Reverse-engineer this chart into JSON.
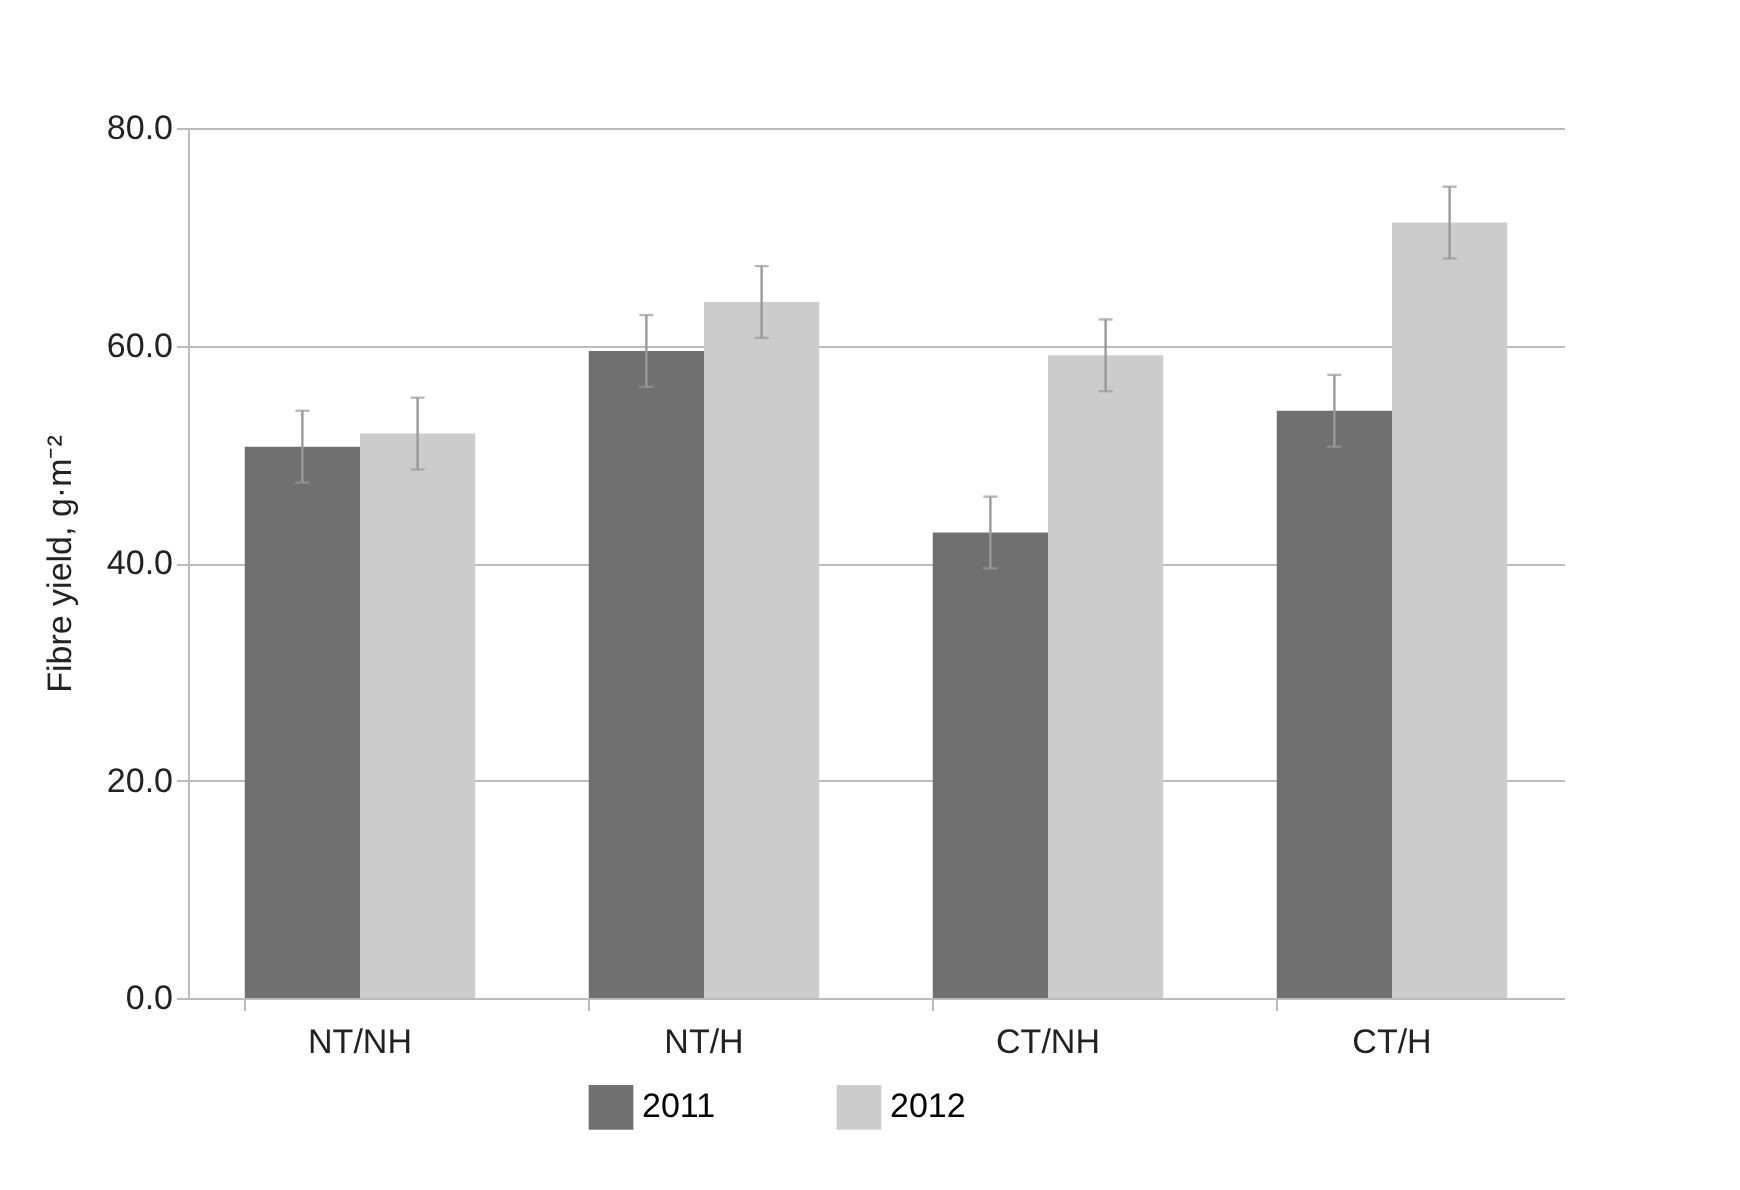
{
  "chart_data": {
    "type": "bar",
    "ylabel": "Fibre yield, g·m⁻²",
    "categories": [
      "NT/NH",
      "NT/H",
      "CT/NH",
      "CT/H"
    ],
    "series": [
      {
        "name": "2011",
        "color": "#707070",
        "values": [
          50.7,
          59.5,
          42.8,
          54.0
        ],
        "errors": [
          3.3,
          3.3,
          3.3,
          3.3
        ]
      },
      {
        "name": "2012",
        "color": "#cccccc",
        "values": [
          51.9,
          64.0,
          59.1,
          71.3
        ],
        "errors": [
          3.3,
          3.3,
          3.3,
          3.3
        ]
      }
    ],
    "ylim": [
      0,
      80
    ],
    "yticks": [
      {
        "value": 0,
        "label": "0.0"
      },
      {
        "value": 20,
        "label": "20.0"
      },
      {
        "value": 40,
        "label": "40.0"
      },
      {
        "value": 60,
        "label": "60.0"
      },
      {
        "value": 80,
        "label": "80.0"
      }
    ],
    "grid": "y",
    "legend": "bottom"
  }
}
